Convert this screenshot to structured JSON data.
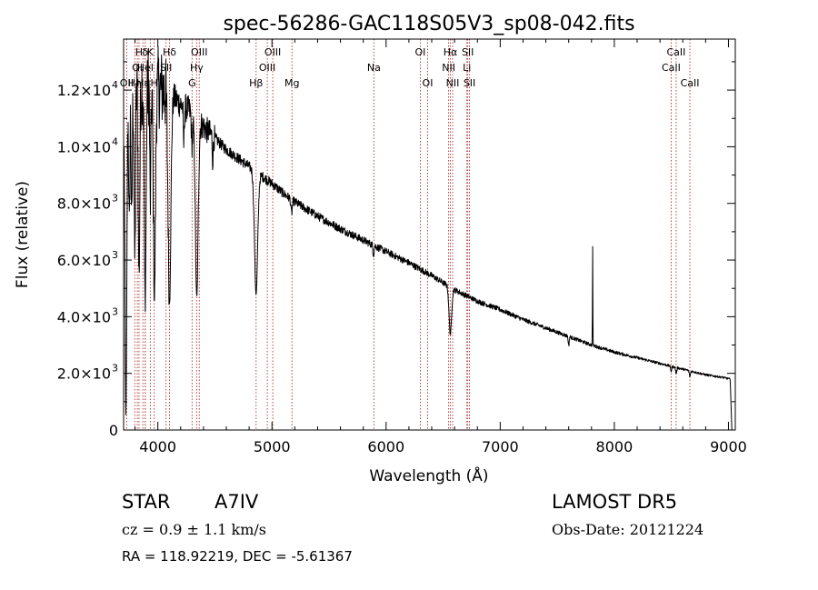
{
  "chart_data": {
    "type": "line",
    "title": "spec-56286-GAC118S05V3_sp08-042.fits",
    "xlabel": "Wavelength (Å)",
    "ylabel": "Flux (relative)",
    "xlim": [
      3700,
      9060
    ],
    "ylim": [
      0,
      13800
    ],
    "x_ticks": [
      {
        "value": 4000,
        "label": "4000"
      },
      {
        "value": 5000,
        "label": "5000"
      },
      {
        "value": 6000,
        "label": "6000"
      },
      {
        "value": 7000,
        "label": "7000"
      },
      {
        "value": 8000,
        "label": "8000"
      },
      {
        "value": 9000,
        "label": "9000"
      }
    ],
    "y_ticks": [
      {
        "value": 0,
        "label": "0",
        "exp": ""
      },
      {
        "value": 2000,
        "label": "2.0×10",
        "exp": "3"
      },
      {
        "value": 4000,
        "label": "4.0×10",
        "exp": "3"
      },
      {
        "value": 6000,
        "label": "6.0×10",
        "exp": "3"
      },
      {
        "value": 8000,
        "label": "8.0×10",
        "exp": "3"
      },
      {
        "value": 10000,
        "label": "1.0×10",
        "exp": "4"
      },
      {
        "value": 12000,
        "label": "1.2×10",
        "exp": "4"
      }
    ],
    "continuum": [
      [
        3705,
        11500
      ],
      [
        3800,
        12200
      ],
      [
        3900,
        12300
      ],
      [
        4000,
        12100
      ],
      [
        4100,
        11900
      ],
      [
        4200,
        11500
      ],
      [
        4300,
        11200
      ],
      [
        4400,
        10700
      ],
      [
        4500,
        10300
      ],
      [
        4600,
        9900
      ],
      [
        4700,
        9600
      ],
      [
        4800,
        9300
      ],
      [
        4900,
        9000
      ],
      [
        5000,
        8700
      ],
      [
        5100,
        8350
      ],
      [
        5200,
        8050
      ],
      [
        5400,
        7550
      ],
      [
        5600,
        7100
      ],
      [
        5800,
        6700
      ],
      [
        6000,
        6300
      ],
      [
        6200,
        5900
      ],
      [
        6400,
        5450
      ],
      [
        6600,
        4950
      ],
      [
        6800,
        4550
      ],
      [
        7000,
        4250
      ],
      [
        7200,
        3900
      ],
      [
        7400,
        3600
      ],
      [
        7600,
        3300
      ],
      [
        7800,
        3000
      ],
      [
        8000,
        2750
      ],
      [
        8200,
        2550
      ],
      [
        8400,
        2350
      ],
      [
        8600,
        2150
      ],
      [
        8800,
        1950
      ],
      [
        8960,
        1850
      ],
      [
        9010,
        1800
      ]
    ],
    "absorption": [
      {
        "center": 3720,
        "depth": 0.95,
        "width": 8
      },
      {
        "center": 3750,
        "depth": 0.4,
        "width": 5
      },
      {
        "center": 3771,
        "depth": 0.4,
        "width": 5
      },
      {
        "center": 3798,
        "depth": 0.5,
        "width": 6
      },
      {
        "center": 3835,
        "depth": 0.55,
        "width": 7
      },
      {
        "center": 3889,
        "depth": 0.62,
        "width": 8
      },
      {
        "center": 3934,
        "depth": 0.35,
        "width": 5
      },
      {
        "center": 3970,
        "depth": 0.62,
        "width": 9
      },
      {
        "center": 4102,
        "depth": 0.62,
        "width": 12
      },
      {
        "center": 4227,
        "depth": 0.12,
        "width": 4
      },
      {
        "center": 4300,
        "depth": 0.1,
        "width": 6
      },
      {
        "center": 4341,
        "depth": 0.58,
        "width": 12
      },
      {
        "center": 4481,
        "depth": 0.08,
        "width": 4
      },
      {
        "center": 4861,
        "depth": 0.47,
        "width": 14
      },
      {
        "center": 5172,
        "depth": 0.06,
        "width": 6
      },
      {
        "center": 5890,
        "depth": 0.05,
        "width": 5
      },
      {
        "center": 6563,
        "depth": 0.33,
        "width": 11
      },
      {
        "center": 7600,
        "depth": 0.1,
        "width": 4
      },
      {
        "center": 8498,
        "depth": 0.08,
        "width": 5
      },
      {
        "center": 8542,
        "depth": 0.1,
        "width": 5
      },
      {
        "center": 8662,
        "depth": 0.1,
        "width": 5
      }
    ],
    "emission": [
      {
        "center": 7810,
        "height": 3400,
        "width": 1.6
      }
    ],
    "edge_drop": [
      {
        "center": 9030,
        "value": 0
      }
    ],
    "lines": [
      {
        "x": 3727,
        "label": "OII",
        "row": 3
      },
      {
        "x": 3798,
        "label": "Hη",
        "row": 3
      },
      {
        "x": 3820,
        "label": "OI",
        "row": 2
      },
      {
        "x": 3835,
        "label": "H",
        "row": 1
      },
      {
        "x": 3869,
        "label": "Hε",
        "row": 3
      },
      {
        "x": 3889,
        "label": "δ",
        "row": 1
      },
      {
        "x": 3890,
        "label": "HeI",
        "row": 2
      },
      {
        "x": 3934,
        "label": "K",
        "row": 1
      },
      {
        "x": 3968,
        "label": "H",
        "row": 3
      },
      {
        "x": 4072,
        "label": "SII",
        "row": 2
      },
      {
        "x": 4102,
        "label": "Hδ",
        "row": 1
      },
      {
        "x": 4300,
        "label": "G",
        "row": 3
      },
      {
        "x": 4340,
        "label": "Hγ",
        "row": 2
      },
      {
        "x": 4363,
        "label": "OIII",
        "row": 1
      },
      {
        "x": 4861,
        "label": "Hβ",
        "row": 3
      },
      {
        "x": 4959,
        "label": "OIII",
        "row": 2
      },
      {
        "x": 5007,
        "label": "OIII",
        "row": 1
      },
      {
        "x": 5175,
        "label": "Mg",
        "row": 3
      },
      {
        "x": 5893,
        "label": "Na",
        "row": 2
      },
      {
        "x": 6300,
        "label": "OI",
        "row": 1
      },
      {
        "x": 6364,
        "label": "OI",
        "row": 3
      },
      {
        "x": 6548,
        "label": "NII",
        "row": 2
      },
      {
        "x": 6563,
        "label": "Hα",
        "row": 1
      },
      {
        "x": 6583,
        "label": "NII",
        "row": 3
      },
      {
        "x": 6708,
        "label": "Li",
        "row": 2
      },
      {
        "x": 6716,
        "label": "SII",
        "row": 1
      },
      {
        "x": 6731,
        "label": "SII",
        "row": 3
      },
      {
        "x": 8498,
        "label": "CaII",
        "row": 2
      },
      {
        "x": 8542,
        "label": "CaII",
        "row": 1
      },
      {
        "x": 8662,
        "label": "CaII",
        "row": 3
      }
    ]
  },
  "info": {
    "class_label": "STAR",
    "subclass": "A7IV",
    "survey": "LAMOST DR5",
    "cz": "cz = 0.9 ± 1.1 km/s",
    "obs_date": "Obs-Date: 20121224",
    "coords": "RA = 118.92219, DEC =  -5.61367"
  },
  "colors": {
    "line_marker": "#b03030",
    "spectrum": "#000000",
    "axis": "#000000"
  }
}
